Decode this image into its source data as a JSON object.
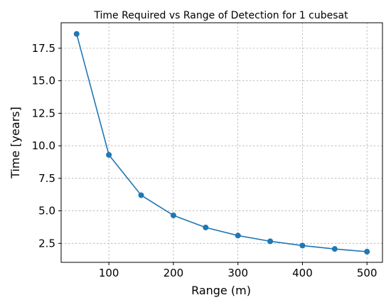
{
  "chart_data": {
    "type": "line",
    "title": "Time Required vs Range of Detection for 1 cubesat",
    "xlabel": "Range (m)",
    "ylabel": "Time [years]",
    "xlim": [
      26,
      524
    ],
    "ylim": [
      1.04,
      19.46
    ],
    "grid": true,
    "x_ticks": [
      100,
      200,
      300,
      400,
      500
    ],
    "x_tick_labels": [
      "100",
      "200",
      "300",
      "400",
      "500"
    ],
    "y_ticks": [
      2.5,
      5.0,
      7.5,
      10.0,
      12.5,
      15.0,
      17.5
    ],
    "y_tick_labels": [
      "2.5",
      "5.0",
      "7.5",
      "10.0",
      "12.5",
      "15.0",
      "17.5"
    ],
    "series": [
      {
        "color": "#1f77b4",
        "marker": "circle",
        "x": [
          50,
          100,
          150,
          200,
          250,
          300,
          350,
          400,
          450,
          500
        ],
        "y": [
          18.6,
          9.3,
          6.2,
          4.65,
          3.72,
          3.1,
          2.66,
          2.33,
          2.07,
          1.86
        ]
      }
    ]
  }
}
